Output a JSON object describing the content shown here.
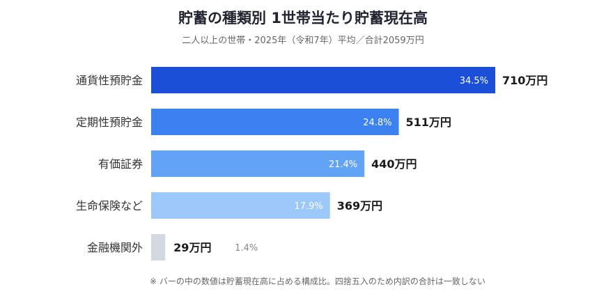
{
  "header": {
    "title": "貯蓄の種類別 1世帯当たり貯蓄現在高",
    "subtitle": "二人以上の世帯・2025年（令和7年）平均／合計2059万円"
  },
  "chart_data": {
    "type": "bar",
    "orientation": "horizontal",
    "categories": [
      "通貨性預貯金",
      "定期性預貯金",
      "有価証券",
      "生命保険など",
      "金融機関外"
    ],
    "values": [
      710,
      511,
      440,
      369,
      29
    ],
    "value_labels": [
      "710万円",
      "511万円",
      "440万円",
      "369万円",
      "29万円"
    ],
    "share_labels": [
      "34.5%",
      "24.8%",
      "21.4%",
      "17.9%",
      "1.4%"
    ],
    "colors": [
      "#1c4fd8",
      "#3b82f0",
      "#63a3f5",
      "#9cc8fa",
      "#d3d9e1"
    ],
    "unit": "万円",
    "grid": false
  },
  "footnote": "※ バーの中の数値は貯蓄現在高に占める構成比。四捨五入のため内訳の合計は一致しない"
}
